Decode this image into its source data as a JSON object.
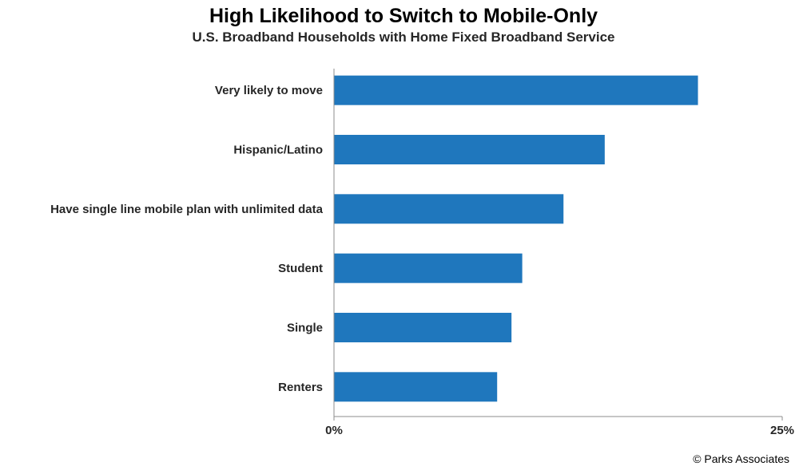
{
  "header": {
    "title": "High Likelihood to Switch to Mobile-Only",
    "subtitle": "U.S. Broadband Households with Home Fixed Broadband Service"
  },
  "chart_data": {
    "type": "bar",
    "orientation": "horizontal",
    "categories": [
      "Very likely to move",
      "Hispanic/Latino",
      "Have single line mobile plan with unlimited data",
      "Student",
      "Single",
      "Renters"
    ],
    "values": [
      20.3,
      15.1,
      12.8,
      10.5,
      9.9,
      9.1
    ],
    "unit": "%",
    "xlim": [
      0,
      25
    ],
    "x_ticks": [
      "0%",
      "25%"
    ],
    "bar_color": "#1f77bd",
    "grid": false,
    "legend": "none",
    "title": "High Likelihood to Switch to Mobile-Only",
    "subtitle": "U.S. Broadband Households with Home Fixed Broadband Service"
  },
  "footer": {
    "source": "© Parks Associates"
  }
}
